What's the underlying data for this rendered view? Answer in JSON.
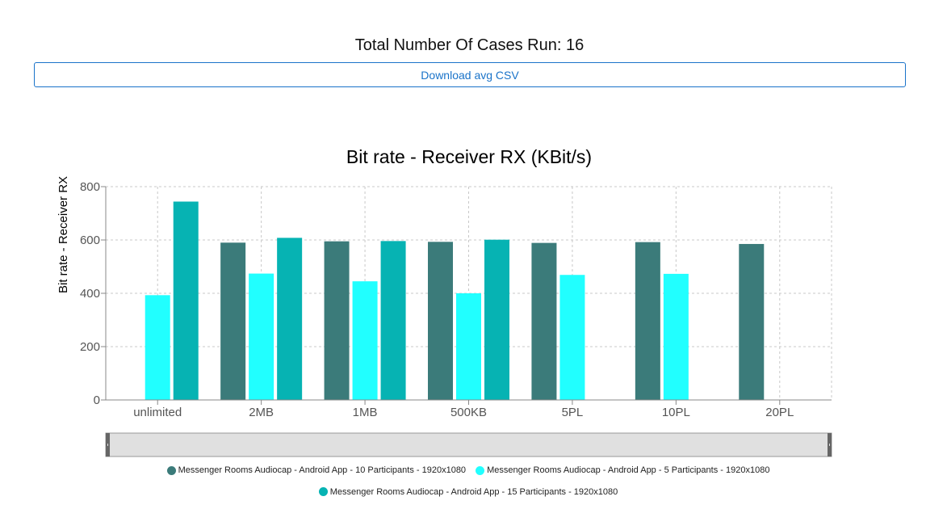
{
  "header": {
    "total_cases": "Total Number Of Cases Run: 16",
    "download_label": "Download avg CSV"
  },
  "chart_data": {
    "type": "bar",
    "title": "Bit rate - Receiver RX (KBit/s)",
    "ylabel": "Bit rate - Receiver RX",
    "xlabel": "",
    "ylim": [
      0,
      800
    ],
    "yticks": [
      0,
      200,
      400,
      600,
      800
    ],
    "grid": true,
    "legend_position": "bottom",
    "categories": [
      "unlimited",
      "2MB",
      "1MB",
      "500KB",
      "5PL",
      "10PL",
      "20PL"
    ],
    "series": [
      {
        "name": "Messenger Rooms Audiocap - Android App - 10 Participants - 1920x1080",
        "color": "#3b7b7a",
        "values": [
          null,
          590,
          595,
          593,
          589,
          592,
          585
        ]
      },
      {
        "name": "Messenger Rooms Audiocap - Android App - 5 Participants - 1920x1080",
        "color": "#21ffff",
        "values": [
          393,
          474,
          445,
          400,
          469,
          473,
          null
        ]
      },
      {
        "name": "Messenger Rooms Audiocap - Android App - 15 Participants - 1920x1080",
        "color": "#06b3b3",
        "values": [
          744,
          608,
          596,
          601,
          null,
          null,
          null
        ]
      }
    ]
  }
}
